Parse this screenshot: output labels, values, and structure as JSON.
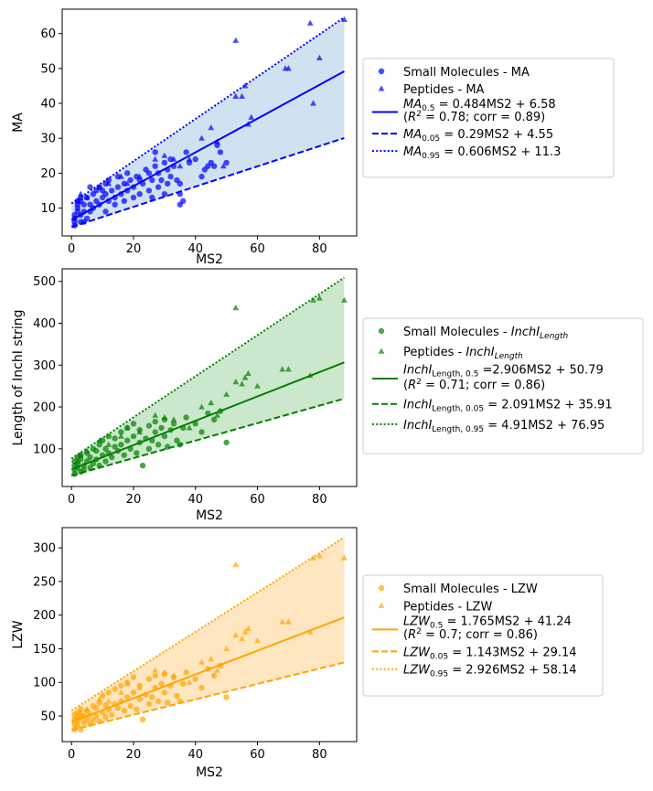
{
  "chart_data": [
    {
      "type": "scatter",
      "id": "ma",
      "xlabel": "MS2",
      "ylabel": "MA",
      "xlim": [
        -3,
        92
      ],
      "ylim": [
        2,
        67
      ],
      "xticks": [
        0,
        20,
        40,
        60,
        80
      ],
      "yticks": [
        10,
        20,
        30,
        40,
        50,
        60
      ],
      "color": "#0000ff",
      "band_color": "#d0e2f2",
      "fit": {
        "slope": 0.484,
        "intercept": 6.58
      },
      "q05": {
        "slope": 0.29,
        "intercept": 4.55
      },
      "q95": {
        "slope": 0.606,
        "intercept": 11.3
      },
      "fit_xrange": [
        0,
        88
      ],
      "small_molecules": [
        [
          1,
          5
        ],
        [
          1,
          6
        ],
        [
          1,
          7
        ],
        [
          1,
          8
        ],
        [
          2,
          9
        ],
        [
          2,
          10
        ],
        [
          2,
          11
        ],
        [
          2,
          12
        ],
        [
          3,
          6
        ],
        [
          3,
          8
        ],
        [
          3,
          12
        ],
        [
          3,
          13
        ],
        [
          4,
          6
        ],
        [
          4,
          9
        ],
        [
          4,
          11
        ],
        [
          5,
          7
        ],
        [
          5,
          13
        ],
        [
          6,
          9
        ],
        [
          6,
          11
        ],
        [
          6,
          16
        ],
        [
          7,
          10
        ],
        [
          7,
          14
        ],
        [
          8,
          12
        ],
        [
          8,
          15
        ],
        [
          9,
          11
        ],
        [
          9,
          16
        ],
        [
          10,
          13
        ],
        [
          10,
          15
        ],
        [
          11,
          9
        ],
        [
          11,
          14
        ],
        [
          11,
          17
        ],
        [
          12,
          12
        ],
        [
          12,
          18
        ],
        [
          13,
          15
        ],
        [
          14,
          11
        ],
        [
          14,
          13
        ],
        [
          15,
          16
        ],
        [
          15,
          19
        ],
        [
          16,
          14
        ],
        [
          17,
          12
        ],
        [
          17,
          17
        ],
        [
          18,
          15
        ],
        [
          18,
          20
        ],
        [
          19,
          18
        ],
        [
          20,
          13
        ],
        [
          20,
          16
        ],
        [
          21,
          19
        ],
        [
          22,
          14
        ],
        [
          22,
          18
        ],
        [
          23,
          17
        ],
        [
          24,
          21
        ],
        [
          25,
          15
        ],
        [
          25,
          20
        ],
        [
          26,
          13
        ],
        [
          26,
          18
        ],
        [
          27,
          22
        ],
        [
          27,
          26
        ],
        [
          28,
          16
        ],
        [
          28,
          20
        ],
        [
          29,
          18
        ],
        [
          30,
          23
        ],
        [
          30,
          14
        ],
        [
          31,
          17
        ],
        [
          31,
          21
        ],
        [
          32,
          19
        ],
        [
          32,
          24
        ],
        [
          33,
          22
        ],
        [
          34,
          18
        ],
        [
          35,
          17
        ],
        [
          35,
          14
        ],
        [
          35,
          11
        ],
        [
          36,
          12
        ],
        [
          37,
          26
        ],
        [
          38,
          23
        ],
        [
          40,
          24
        ],
        [
          42,
          19
        ],
        [
          43,
          21
        ],
        [
          44,
          22
        ],
        [
          45,
          23
        ],
        [
          46,
          22
        ],
        [
          47,
          28
        ],
        [
          48,
          26
        ],
        [
          50,
          23
        ]
      ],
      "peptides": [
        [
          2,
          12
        ],
        [
          3,
          14
        ],
        [
          5,
          13
        ],
        [
          9,
          16
        ],
        [
          12,
          17
        ],
        [
          16,
          19
        ],
        [
          18,
          17
        ],
        [
          22,
          19
        ],
        [
          27,
          24
        ],
        [
          30,
          25
        ],
        [
          33,
          24
        ],
        [
          35,
          22
        ],
        [
          38,
          24
        ],
        [
          42,
          30
        ],
        [
          45,
          33
        ],
        [
          47,
          29
        ],
        [
          49,
          22
        ],
        [
          53,
          58
        ],
        [
          53,
          42
        ],
        [
          55,
          42
        ],
        [
          56,
          45
        ],
        [
          57,
          34
        ],
        [
          58,
          36
        ],
        [
          69,
          50
        ],
        [
          70,
          50
        ],
        [
          77,
          63
        ],
        [
          78,
          40
        ],
        [
          80,
          53
        ],
        [
          88,
          64
        ]
      ],
      "legend": {
        "small": "Small Molecules - MA",
        "pept": "Peptides - MA",
        "sym": "MA",
        "sub_fit": "0.5",
        "eq_fit": " = 0.484MS2 + 6.58",
        "r2_pre": " (",
        "r2_post": " = 0.78; corr = 0.89)",
        "sub_q05": "0.05",
        "eq_q05": " = 0.29MS2 + 4.55",
        "sub_q95": "0.95",
        "eq_q95": " = 0.606MS2 + 11.3"
      }
    },
    {
      "type": "scatter",
      "id": "inchi",
      "xlabel": "MS2",
      "ylabel": "Length of InchI string",
      "xlim": [
        -3,
        92
      ],
      "ylim": [
        10,
        530
      ],
      "xticks": [
        0,
        20,
        40,
        60,
        80
      ],
      "yticks": [
        100,
        200,
        300,
        400,
        500
      ],
      "color": "#008000",
      "band_color": "#cce8cc",
      "fit": {
        "slope": 2.906,
        "intercept": 50.79
      },
      "q05": {
        "slope": 2.091,
        "intercept": 35.91
      },
      "q95": {
        "slope": 4.91,
        "intercept": 76.95
      },
      "fit_xrange": [
        0,
        88
      ],
      "small_molecules": [
        [
          1,
          40
        ],
        [
          1,
          50
        ],
        [
          1,
          60
        ],
        [
          1,
          70
        ],
        [
          2,
          55
        ],
        [
          2,
          65
        ],
        [
          2,
          80
        ],
        [
          3,
          45
        ],
        [
          3,
          75
        ],
        [
          3,
          85
        ],
        [
          4,
          50
        ],
        [
          4,
          60
        ],
        [
          5,
          70
        ],
        [
          5,
          90
        ],
        [
          6,
          55
        ],
        [
          6,
          80
        ],
        [
          7,
          65
        ],
        [
          7,
          100
        ],
        [
          8,
          75
        ],
        [
          8,
          95
        ],
        [
          9,
          60
        ],
        [
          9,
          110
        ],
        [
          10,
          85
        ],
        [
          10,
          120
        ],
        [
          11,
          70
        ],
        [
          11,
          100
        ],
        [
          12,
          90
        ],
        [
          12,
          130
        ],
        [
          13,
          80
        ],
        [
          14,
          105
        ],
        [
          14,
          125
        ],
        [
          15,
          95
        ],
        [
          16,
          110
        ],
        [
          16,
          140
        ],
        [
          17,
          85
        ],
        [
          18,
          120
        ],
        [
          18,
          150
        ],
        [
          19,
          100
        ],
        [
          20,
          130
        ],
        [
          20,
          160
        ],
        [
          21,
          90
        ],
        [
          22,
          115
        ],
        [
          22,
          145
        ],
        [
          23,
          60
        ],
        [
          24,
          125
        ],
        [
          25,
          155
        ],
        [
          25,
          100
        ],
        [
          26,
          120
        ],
        [
          27,
          165
        ],
        [
          27,
          140
        ],
        [
          28,
          110
        ],
        [
          29,
          150
        ],
        [
          30,
          130
        ],
        [
          30,
          170
        ],
        [
          31,
          105
        ],
        [
          32,
          145
        ],
        [
          33,
          160
        ],
        [
          34,
          120
        ],
        [
          35,
          110
        ],
        [
          36,
          150
        ],
        [
          37,
          175
        ],
        [
          40,
          160
        ],
        [
          42,
          140
        ],
        [
          44,
          185
        ],
        [
          46,
          170
        ],
        [
          48,
          190
        ],
        [
          50,
          115
        ]
      ],
      "peptides": [
        [
          2,
          70
        ],
        [
          3,
          85
        ],
        [
          5,
          95
        ],
        [
          9,
          120
        ],
        [
          12,
          110
        ],
        [
          16,
          130
        ],
        [
          18,
          150
        ],
        [
          22,
          140
        ],
        [
          27,
          180
        ],
        [
          30,
          175
        ],
        [
          33,
          170
        ],
        [
          38,
          150
        ],
        [
          42,
          200
        ],
        [
          45,
          210
        ],
        [
          47,
          180
        ],
        [
          50,
          230
        ],
        [
          53,
          437
        ],
        [
          53,
          260
        ],
        [
          55,
          255
        ],
        [
          56,
          270
        ],
        [
          57,
          280
        ],
        [
          60,
          250
        ],
        [
          68,
          290
        ],
        [
          70,
          290
        ],
        [
          77,
          275
        ],
        [
          78,
          455
        ],
        [
          80,
          460
        ],
        [
          88,
          455
        ]
      ],
      "legend": {
        "small": "Small Molecules - ",
        "small_sym": "InchI",
        "small_sub": "Length",
        "pept": "Peptides - ",
        "sym": "InchI",
        "sub_fit": "Length, 0.5",
        "eq_fit": " =2.906MS2 + 50.79",
        "r2_pre": " (",
        "r2_post": " = 0.71; corr = 0.86)",
        "sub_q05": "Length, 0.05",
        "eq_q05": " = 2.091MS2 + 35.91",
        "sub_q95": "Length, 0.95",
        "eq_q95": " = 4.91MS2 + 76.95"
      }
    },
    {
      "type": "scatter",
      "id": "lzw",
      "xlabel": "MS2",
      "ylabel": "LZW",
      "xlim": [
        -3,
        92
      ],
      "ylim": [
        12,
        330
      ],
      "xticks": [
        0,
        20,
        40,
        60,
        80
      ],
      "yticks": [
        50,
        100,
        150,
        200,
        250,
        300
      ],
      "color": "#ffa500",
      "band_color": "#fde6c0",
      "fit": {
        "slope": 1.765,
        "intercept": 41.24
      },
      "q05": {
        "slope": 1.143,
        "intercept": 29.14
      },
      "q95": {
        "slope": 2.926,
        "intercept": 58.14
      },
      "fit_xrange": [
        0,
        88
      ],
      "small_molecules": [
        [
          1,
          30
        ],
        [
          1,
          38
        ],
        [
          1,
          45
        ],
        [
          1,
          52
        ],
        [
          2,
          35
        ],
        [
          2,
          42
        ],
        [
          2,
          55
        ],
        [
          3,
          30
        ],
        [
          3,
          48
        ],
        [
          3,
          60
        ],
        [
          4,
          40
        ],
        [
          4,
          50
        ],
        [
          5,
          45
        ],
        [
          5,
          58
        ],
        [
          6,
          38
        ],
        [
          6,
          52
        ],
        [
          7,
          44
        ],
        [
          7,
          65
        ],
        [
          8,
          50
        ],
        [
          8,
          62
        ],
        [
          9,
          42
        ],
        [
          9,
          70
        ],
        [
          10,
          55
        ],
        [
          10,
          80
        ],
        [
          11,
          48
        ],
        [
          11,
          66
        ],
        [
          12,
          60
        ],
        [
          12,
          85
        ],
        [
          13,
          52
        ],
        [
          14,
          68
        ],
        [
          14,
          90
        ],
        [
          15,
          62
        ],
        [
          16,
          72
        ],
        [
          16,
          95
        ],
        [
          17,
          58
        ],
        [
          18,
          78
        ],
        [
          18,
          100
        ],
        [
          19,
          65
        ],
        [
          20,
          85
        ],
        [
          20,
          108
        ],
        [
          21,
          60
        ],
        [
          22,
          75
        ],
        [
          22,
          95
        ],
        [
          23,
          45
        ],
        [
          24,
          82
        ],
        [
          25,
          105
        ],
        [
          25,
          68
        ],
        [
          26,
          78
        ],
        [
          27,
          110
        ],
        [
          27,
          92
        ],
        [
          28,
          72
        ],
        [
          29,
          98
        ],
        [
          30,
          85
        ],
        [
          30,
          112
        ],
        [
          31,
          70
        ],
        [
          32,
          95
        ],
        [
          33,
          108
        ],
        [
          34,
          80
        ],
        [
          35,
          72
        ],
        [
          36,
          98
        ],
        [
          37,
          115
        ],
        [
          40,
          105
        ],
        [
          42,
          92
        ],
        [
          44,
          120
        ],
        [
          46,
          110
        ],
        [
          48,
          125
        ],
        [
          50,
          78
        ]
      ],
      "peptides": [
        [
          2,
          48
        ],
        [
          3,
          55
        ],
        [
          5,
          60
        ],
        [
          9,
          75
        ],
        [
          12,
          72
        ],
        [
          16,
          85
        ],
        [
          18,
          98
        ],
        [
          22,
          92
        ],
        [
          27,
          118
        ],
        [
          30,
          115
        ],
        [
          33,
          110
        ],
        [
          38,
          100
        ],
        [
          42,
          130
        ],
        [
          45,
          135
        ],
        [
          47,
          118
        ],
        [
          50,
          150
        ],
        [
          53,
          275
        ],
        [
          53,
          170
        ],
        [
          55,
          165
        ],
        [
          56,
          175
        ],
        [
          57,
          180
        ],
        [
          60,
          162
        ],
        [
          68,
          190
        ],
        [
          70,
          190
        ],
        [
          77,
          175
        ],
        [
          78,
          285
        ],
        [
          80,
          288
        ],
        [
          88,
          285
        ]
      ],
      "legend": {
        "small": "Small Molecules - LZW",
        "pept": "Peptides - LZW",
        "sym": "LZW",
        "sub_fit": "0.5",
        "eq_fit": " = 1.765MS2 + 41.24",
        "r2_pre": " (",
        "r2_post": " = 0.7; corr = 0.86)",
        "sub_q05": "0.05",
        "eq_q05": " =  1.143MS2 + 29.14",
        "sub_q95": "0.95",
        "eq_q95": " =  2.926MS2 + 58.14"
      }
    }
  ]
}
